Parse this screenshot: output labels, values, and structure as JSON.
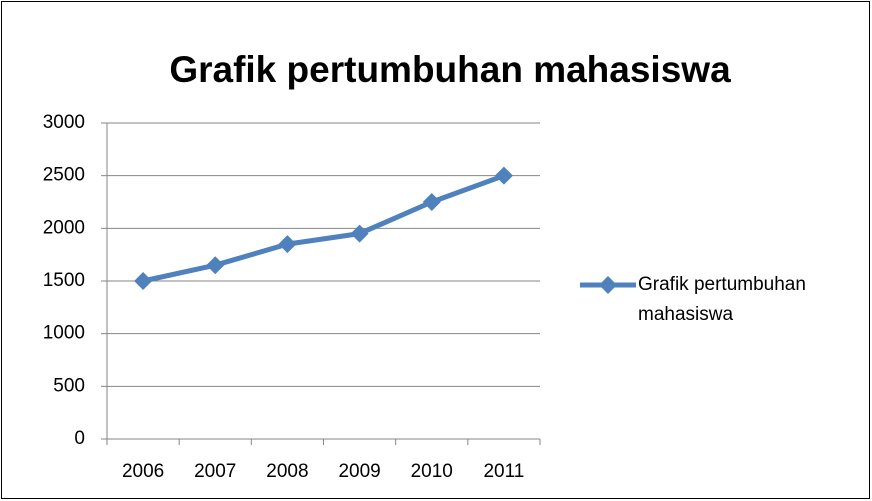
{
  "chart_data": {
    "type": "line",
    "title": "Grafik pertumbuhan mahasiswa",
    "categories": [
      "2006",
      "2007",
      "2008",
      "2009",
      "2010",
      "2011"
    ],
    "series": [
      {
        "name": "Grafik pertumbuhan mahasiswa",
        "color": "#4f81bd",
        "values": [
          1500,
          1650,
          1850,
          1950,
          2250,
          2500
        ]
      }
    ],
    "ylim": [
      0,
      3000
    ],
    "yticks": [
      0,
      500,
      1000,
      1500,
      2000,
      2500,
      3000
    ],
    "grid": true,
    "legend": "right"
  }
}
